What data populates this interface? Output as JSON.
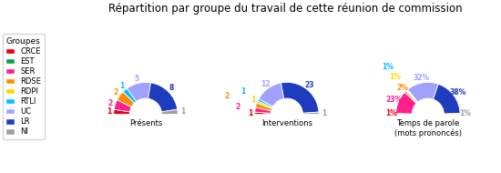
{
  "title": "Répartition par groupe du travail de cette réunion de commission",
  "legend_title": "Groupes",
  "legend": "center left",
  "chart_data": [
    {
      "type": "pie",
      "title": "Présents",
      "categories": [
        "CRCE",
        "EST",
        "SER",
        "RDSE",
        "RDPI",
        "RTLI",
        "UC",
        "LR",
        "NI"
      ],
      "values": [
        1,
        0,
        2,
        2,
        0,
        1,
        5,
        8,
        1
      ],
      "colors": [
        "#e8000d",
        "#00a650",
        "#ff1e8c",
        "#ff8c00",
        "#ffd700",
        "#00bfff",
        "#a0a0ff",
        "#1e3cbe",
        "#a0a0a0"
      ],
      "data_labels": true,
      "value_labels": [
        "1",
        null,
        "2",
        "2",
        null,
        "1",
        "5",
        "8",
        "1"
      ]
    },
    {
      "type": "pie",
      "title": "Interventions",
      "categories": [
        "CRCE",
        "EST",
        "SER",
        "RDSE",
        "RDPI",
        "RTLI",
        "UC",
        "LR",
        "NI"
      ],
      "values": [
        1,
        0,
        2,
        2,
        1,
        1,
        12,
        23,
        1
      ],
      "colors": [
        "#e8000d",
        "#00a650",
        "#ff1e8c",
        "#ff8c00",
        "#ffd700",
        "#00bfff",
        "#a0a0ff",
        "#1e3cbe",
        "#a0a0a0"
      ],
      "data_labels": true,
      "value_labels": [
        "1",
        null,
        "2",
        "2",
        "1",
        "1",
        "12",
        "23",
        "1"
      ]
    },
    {
      "type": "pie",
      "title": "Temps de parole\n(mots prononcés)",
      "categories": [
        "CRCE",
        "EST",
        "SER",
        "RDSE",
        "RDPI",
        "RTLI",
        "UC",
        "LR",
        "NI"
      ],
      "values": [
        1,
        0,
        23,
        2,
        1,
        1,
        32,
        38,
        1
      ],
      "colors": [
        "#e8000d",
        "#00a650",
        "#ff1e8c",
        "#ff8c00",
        "#ffd700",
        "#00bfff",
        "#a0a0ff",
        "#1e3cbe",
        "#a0a0a0"
      ],
      "data_labels": true,
      "value_labels": [
        "1%",
        null,
        "23%",
        "2%",
        "1%",
        "1%",
        "32%",
        "38%",
        "1%"
      ]
    }
  ]
}
